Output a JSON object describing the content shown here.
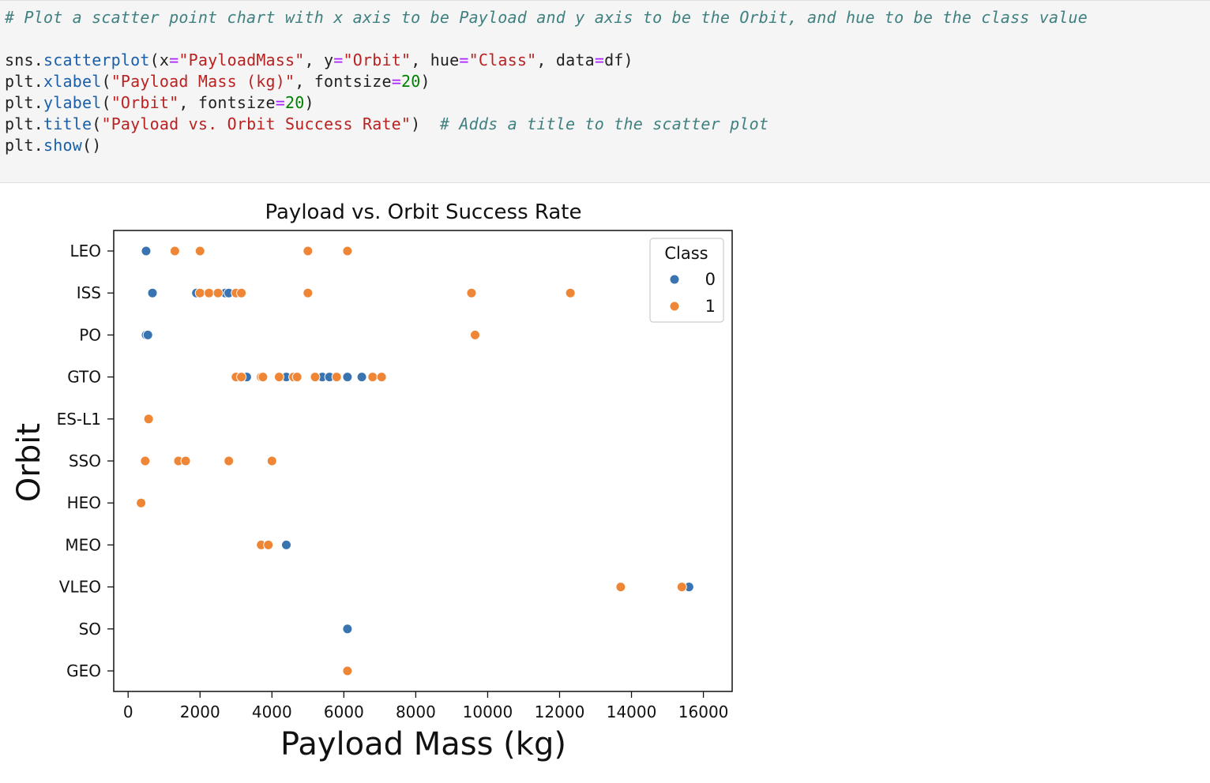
{
  "code": {
    "comment_line": "# Plot a scatter point chart with x axis to be Payload and y axis to be the Orbit, and hue to be the class value",
    "lines": [
      [
        {
          "t": "sns",
          "c": "name"
        },
        {
          "t": ".",
          "c": "name"
        },
        {
          "t": "scatterplot",
          "c": "attr"
        },
        {
          "t": "(",
          "c": "name"
        },
        {
          "t": "x",
          "c": "name"
        },
        {
          "t": "=",
          "c": "op"
        },
        {
          "t": "\"PayloadMass\"",
          "c": "str"
        },
        {
          "t": ", ",
          "c": "name"
        },
        {
          "t": "y",
          "c": "name"
        },
        {
          "t": "=",
          "c": "op"
        },
        {
          "t": "\"Orbit\"",
          "c": "str"
        },
        {
          "t": ", ",
          "c": "name"
        },
        {
          "t": "hue",
          "c": "name"
        },
        {
          "t": "=",
          "c": "op"
        },
        {
          "t": "\"Class\"",
          "c": "str"
        },
        {
          "t": ", ",
          "c": "name"
        },
        {
          "t": "data",
          "c": "name"
        },
        {
          "t": "=",
          "c": "op"
        },
        {
          "t": "df",
          "c": "name"
        },
        {
          "t": ")",
          "c": "name"
        }
      ],
      [
        {
          "t": "plt",
          "c": "name"
        },
        {
          "t": ".",
          "c": "name"
        },
        {
          "t": "xlabel",
          "c": "attr"
        },
        {
          "t": "(",
          "c": "name"
        },
        {
          "t": "\"Payload Mass (kg)\"",
          "c": "str"
        },
        {
          "t": ", ",
          "c": "name"
        },
        {
          "t": "fontsize",
          "c": "name"
        },
        {
          "t": "=",
          "c": "op"
        },
        {
          "t": "20",
          "c": "num"
        },
        {
          "t": ")",
          "c": "name"
        }
      ],
      [
        {
          "t": "plt",
          "c": "name"
        },
        {
          "t": ".",
          "c": "name"
        },
        {
          "t": "ylabel",
          "c": "attr"
        },
        {
          "t": "(",
          "c": "name"
        },
        {
          "t": "\"Orbit\"",
          "c": "str"
        },
        {
          "t": ", ",
          "c": "name"
        },
        {
          "t": "fontsize",
          "c": "name"
        },
        {
          "t": "=",
          "c": "op"
        },
        {
          "t": "20",
          "c": "num"
        },
        {
          "t": ")",
          "c": "name"
        }
      ],
      [
        {
          "t": "plt",
          "c": "name"
        },
        {
          "t": ".",
          "c": "name"
        },
        {
          "t": "title",
          "c": "attr"
        },
        {
          "t": "(",
          "c": "name"
        },
        {
          "t": "\"Payload vs. Orbit Success Rate\"",
          "c": "str"
        },
        {
          "t": ")  ",
          "c": "name"
        },
        {
          "t": "# Adds a title to the scatter plot",
          "c": "comment"
        }
      ],
      [
        {
          "t": "plt",
          "c": "name"
        },
        {
          "t": ".",
          "c": "name"
        },
        {
          "t": "show",
          "c": "attr"
        },
        {
          "t": "()",
          "c": "name"
        }
      ]
    ]
  },
  "chart_data": {
    "type": "scatter",
    "title": "Payload vs. Orbit Success Rate",
    "xlabel": "Payload Mass (kg)",
    "ylabel": "Orbit",
    "xlim": [
      -400,
      16800
    ],
    "x_ticks": [
      0,
      2000,
      4000,
      6000,
      8000,
      10000,
      12000,
      14000,
      16000
    ],
    "categories": [
      "LEO",
      "ISS",
      "PO",
      "GTO",
      "ES-L1",
      "SSO",
      "HEO",
      "MEO",
      "VLEO",
      "SO",
      "GEO"
    ],
    "grid": false,
    "legend": {
      "title": "Class",
      "position": "top-right",
      "entries": [
        "0",
        "1"
      ]
    },
    "colors": {
      "0": "#3a74b0",
      "1": "#ef8636"
    },
    "series": [
      {
        "name": "0",
        "points": [
          [
            500,
            "LEO"
          ],
          [
            677,
            "ISS"
          ],
          [
            1900,
            "ISS"
          ],
          [
            2700,
            "ISS"
          ],
          [
            2800,
            "ISS"
          ],
          [
            500,
            "PO"
          ],
          [
            550,
            "PO"
          ],
          [
            3300,
            "GTO"
          ],
          [
            4400,
            "GTO"
          ],
          [
            5400,
            "GTO"
          ],
          [
            5600,
            "GTO"
          ],
          [
            6100,
            "GTO"
          ],
          [
            6500,
            "GTO"
          ],
          [
            4400,
            "MEO"
          ],
          [
            15600,
            "VLEO"
          ],
          [
            6100,
            "SO"
          ]
        ]
      },
      {
        "name": "1",
        "points": [
          [
            1300,
            "LEO"
          ],
          [
            2000,
            "LEO"
          ],
          [
            5000,
            "LEO"
          ],
          [
            6100,
            "LEO"
          ],
          [
            2000,
            "ISS"
          ],
          [
            2250,
            "ISS"
          ],
          [
            2500,
            "ISS"
          ],
          [
            3000,
            "ISS"
          ],
          [
            3150,
            "ISS"
          ],
          [
            5000,
            "ISS"
          ],
          [
            9550,
            "ISS"
          ],
          [
            12300,
            "ISS"
          ],
          [
            9650,
            "PO"
          ],
          [
            3000,
            "GTO"
          ],
          [
            3150,
            "GTO"
          ],
          [
            3700,
            "GTO"
          ],
          [
            3750,
            "GTO"
          ],
          [
            4200,
            "GTO"
          ],
          [
            4600,
            "GTO"
          ],
          [
            4700,
            "GTO"
          ],
          [
            5200,
            "GTO"
          ],
          [
            5800,
            "GTO"
          ],
          [
            6800,
            "GTO"
          ],
          [
            7050,
            "GTO"
          ],
          [
            570,
            "ES-L1"
          ],
          [
            475,
            "SSO"
          ],
          [
            1400,
            "SSO"
          ],
          [
            1600,
            "SSO"
          ],
          [
            2800,
            "SSO"
          ],
          [
            4000,
            "SSO"
          ],
          [
            360,
            "HEO"
          ],
          [
            3700,
            "MEO"
          ],
          [
            3900,
            "MEO"
          ],
          [
            13700,
            "VLEO"
          ],
          [
            15400,
            "VLEO"
          ],
          [
            6100,
            "GEO"
          ]
        ]
      }
    ]
  }
}
